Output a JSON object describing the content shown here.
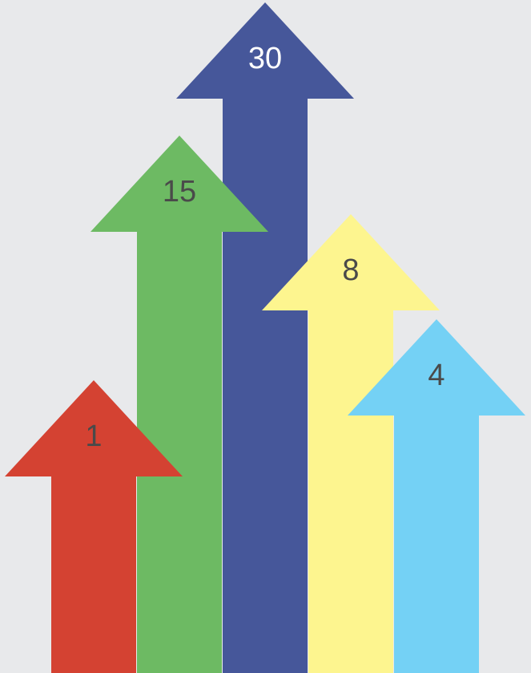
{
  "chart_data": {
    "type": "bar",
    "style": "arrows",
    "values": [
      1,
      15,
      30,
      8,
      4
    ],
    "labels": [
      "1",
      "15",
      "30",
      "8",
      "4"
    ],
    "colors": [
      "#d44232",
      "#6dba63",
      "#46579a",
      "#fdf58f",
      "#74d1f5"
    ],
    "label_colors": [
      "#4a4a4a",
      "#4a4a4a",
      "#ffffff",
      "#4a4a4a",
      "#4a4a4a"
    ],
    "title": "",
    "xlabel": "",
    "ylabel": "",
    "ylim": [
      0,
      30
    ],
    "grid": false,
    "legend": "none"
  }
}
